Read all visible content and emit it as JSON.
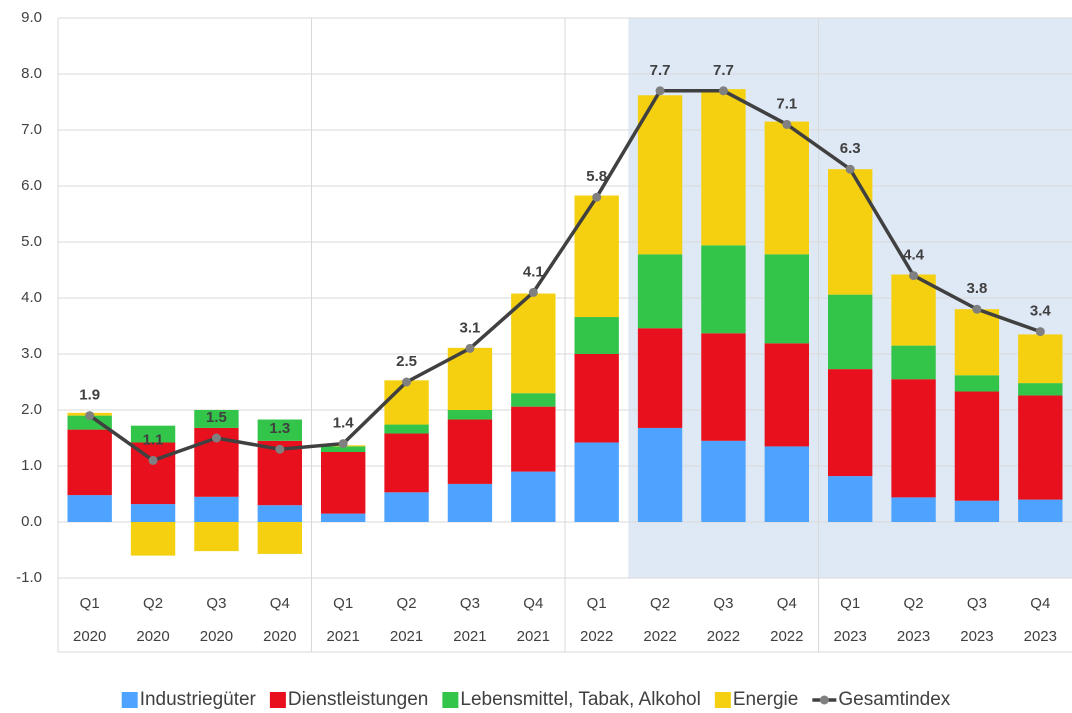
{
  "chart_data": {
    "type": "bar",
    "categories": [
      "Q1",
      "Q2",
      "Q3",
      "Q4",
      "Q1",
      "Q2",
      "Q3",
      "Q4",
      "Q1",
      "Q2",
      "Q3",
      "Q4",
      "Q1",
      "Q2",
      "Q3",
      "Q4"
    ],
    "category_years": [
      "2020",
      "2020",
      "2020",
      "2020",
      "2021",
      "2021",
      "2021",
      "2021",
      "2022",
      "2022",
      "2022",
      "2022",
      "2023",
      "2023",
      "2023",
      "2023"
    ],
    "series": [
      {
        "name": "Industriegüter",
        "color": "#4da3ff",
        "values": [
          0.48,
          0.32,
          0.45,
          0.3,
          0.15,
          0.53,
          0.68,
          0.9,
          1.42,
          1.68,
          1.45,
          1.35,
          0.82,
          0.44,
          0.38,
          0.4
        ]
      },
      {
        "name": "Dienstleistungen",
        "color": "#e8101c",
        "values": [
          1.17,
          1.1,
          1.23,
          1.15,
          1.1,
          1.05,
          1.15,
          1.16,
          1.58,
          1.78,
          1.92,
          1.84,
          1.91,
          2.11,
          1.95,
          1.86
        ]
      },
      {
        "name": "Lebensmittel, Tabak, Alkohol",
        "color": "#33c44a",
        "values": [
          0.25,
          0.3,
          0.32,
          0.38,
          0.1,
          0.16,
          0.17,
          0.24,
          0.66,
          1.32,
          1.57,
          1.59,
          1.33,
          0.6,
          0.29,
          0.22
        ]
      },
      {
        "name": "Energie",
        "color": "#f5d010",
        "values": [
          0.05,
          -0.6,
          -0.52,
          -0.57,
          0.02,
          0.79,
          1.11,
          1.78,
          2.17,
          2.84,
          2.79,
          2.37,
          2.24,
          1.27,
          1.18,
          0.87
        ]
      },
      {
        "name": "Gesamtindex",
        "type": "line",
        "color": "#404040",
        "marker_color": "#808080",
        "values": [
          1.9,
          1.1,
          1.5,
          1.3,
          1.4,
          2.5,
          3.1,
          4.1,
          5.8,
          7.7,
          7.7,
          7.1,
          6.3,
          4.4,
          3.8,
          3.4
        ]
      }
    ],
    "ylim": [
      -1,
      9
    ],
    "yticks": [
      {
        "value": -1,
        "label": "-1.0"
      },
      {
        "value": 0,
        "label": "0.0"
      },
      {
        "value": 1,
        "label": "1.0"
      },
      {
        "value": 2,
        "label": "2.0"
      },
      {
        "value": 3,
        "label": "3.0"
      },
      {
        "value": 4,
        "label": "4.0"
      },
      {
        "value": 5,
        "label": "5.0"
      },
      {
        "value": 6,
        "label": "6.0"
      },
      {
        "value": 7,
        "label": "7.0"
      },
      {
        "value": 8,
        "label": "8.0"
      },
      {
        "value": 9,
        "label": "9.0"
      }
    ],
    "grid": true,
    "stacked": true,
    "legend": "bottom",
    "shaded_from_category": 9,
    "shade_color": "#dfe8f5"
  }
}
